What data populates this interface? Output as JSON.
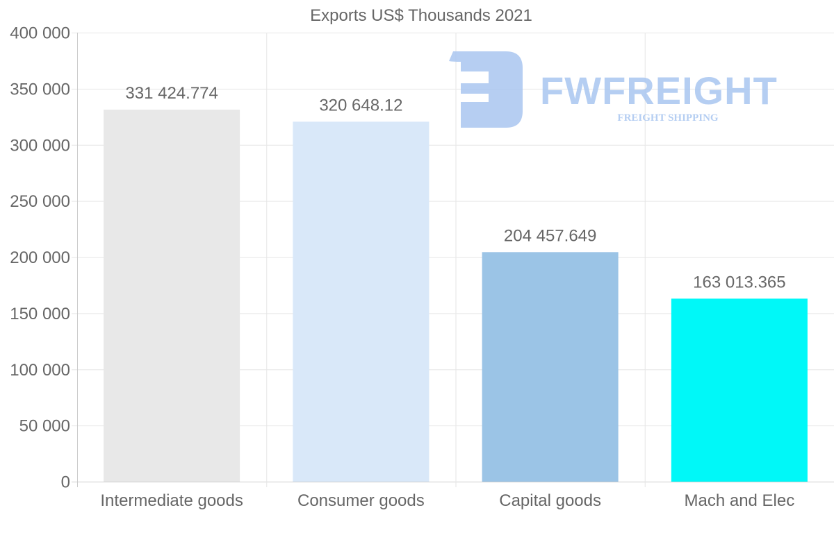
{
  "chart_data": {
    "type": "bar",
    "title": "Exports US$ Thousands 2021",
    "categories": [
      "Intermediate goods",
      "Consumer goods",
      "Capital goods",
      "Mach and Elec"
    ],
    "values": [
      331424.774,
      320648.12,
      204457.649,
      163013.365
    ],
    "value_labels": [
      "331 424.774",
      "320 648.12",
      "204 457.649",
      "163 013.365"
    ],
    "colors": [
      "#e8e8e8",
      "#d9e8f9",
      "#9bc4e6",
      "#00f8f8"
    ],
    "xlabel": "",
    "ylabel": "",
    "ylim": [
      0,
      400000
    ],
    "yticks": [
      0,
      50000,
      100000,
      150000,
      200000,
      250000,
      300000,
      350000,
      400000
    ],
    "ytick_labels": [
      "0",
      "50 000",
      "100 000",
      "150 000",
      "200 000",
      "250 000",
      "300 000",
      "350 000",
      "400 000"
    ],
    "grid": true,
    "legend": "none"
  },
  "watermark": {
    "brand": "FWFREIGHT",
    "tagline": "FREIGHT SHIPPING",
    "color": "#a9c6f0"
  }
}
